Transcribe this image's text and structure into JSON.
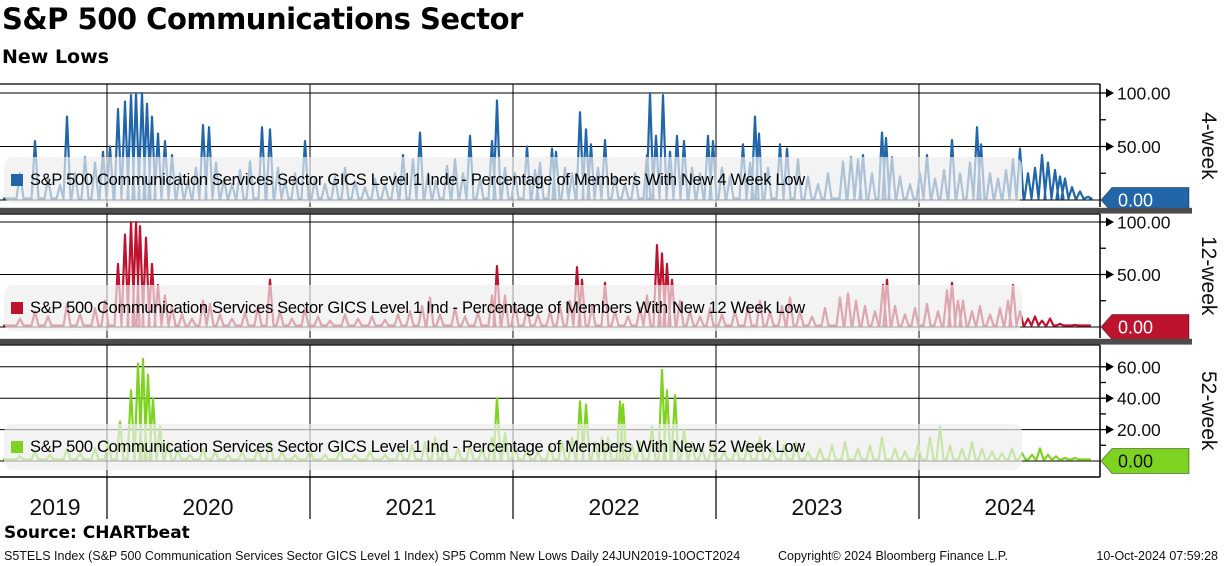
{
  "header": {
    "title": "S&P 500 Communications Sector",
    "subtitle": "New Lows"
  },
  "source_label": "Source: CHARTbeat",
  "footer": {
    "left": "S5TELS Index (S&P 500 Communication Services Sector GICS Level 1 Index) SP5 Comm New Lows  Daily 24JUN2019-10OCT2024",
    "copyright": "Copyright© 2024 Bloomberg Finance L.P.",
    "timestamp": "10-Oct-2024 07:59:28"
  },
  "x_axis": {
    "years": [
      "2019",
      "2020",
      "2021",
      "2022",
      "2023",
      "2024"
    ],
    "range": "24JUN2019-10OCT2024"
  },
  "chart_data": [
    {
      "type": "line",
      "panel": "4-week",
      "legend": "S&P 500 Communication Services Sector GICS Level 1 Inde - Percentage of Members With New 4 Week Low",
      "color": "#2066a8",
      "ylabel": "Percentage of Members With New 4 Week Low",
      "ylim": [
        0,
        112
      ],
      "yticks": [
        {
          "value": 100,
          "label": "100.00"
        },
        {
          "value": 50,
          "label": "50.00"
        }
      ],
      "minor_ticks": [
        25,
        75
      ],
      "zero_tag": {
        "value": 0,
        "label": "0.00",
        "text_color": "#ffffff"
      },
      "x_unit": "plot position 0-1100 spanning 24JUN2019 to 10OCT2024",
      "spikes": [
        [
          20,
          25
        ],
        [
          35,
          55
        ],
        [
          48,
          20
        ],
        [
          60,
          14
        ],
        [
          67,
          78
        ],
        [
          75,
          25
        ],
        [
          85,
          40
        ],
        [
          95,
          35
        ],
        [
          103,
          45
        ],
        [
          110,
          50
        ],
        [
          118,
          85
        ],
        [
          125,
          92
        ],
        [
          131,
          98
        ],
        [
          136,
          100
        ],
        [
          142,
          100
        ],
        [
          147,
          90
        ],
        [
          152,
          78
        ],
        [
          158,
          62
        ],
        [
          165,
          55
        ],
        [
          172,
          42
        ],
        [
          180,
          25
        ],
        [
          188,
          18
        ],
        [
          196,
          30
        ],
        [
          203,
          70
        ],
        [
          209,
          68
        ],
        [
          216,
          35
        ],
        [
          224,
          20
        ],
        [
          232,
          15
        ],
        [
          240,
          28
        ],
        [
          250,
          36
        ],
        [
          262,
          68
        ],
        [
          270,
          66
        ],
        [
          278,
          30
        ],
        [
          285,
          18
        ],
        [
          295,
          25
        ],
        [
          305,
          55
        ],
        [
          315,
          20
        ],
        [
          325,
          15
        ],
        [
          335,
          22
        ],
        [
          345,
          30
        ],
        [
          355,
          18
        ],
        [
          365,
          12
        ],
        [
          375,
          20
        ],
        [
          385,
          15
        ],
        [
          395,
          25
        ],
        [
          403,
          42
        ],
        [
          413,
          38
        ],
        [
          420,
          63
        ],
        [
          428,
          25
        ],
        [
          436,
          18
        ],
        [
          447,
          32
        ],
        [
          455,
          38
        ],
        [
          463,
          25
        ],
        [
          470,
          60
        ],
        [
          480,
          20
        ],
        [
          492,
          55
        ],
        [
          497,
          93
        ],
        [
          505,
          30
        ],
        [
          515,
          25
        ],
        [
          527,
          50
        ],
        [
          535,
          28
        ],
        [
          540,
          35
        ],
        [
          552,
          48
        ],
        [
          556,
          45
        ],
        [
          565,
          30
        ],
        [
          572,
          25
        ],
        [
          580,
          82
        ],
        [
          586,
          66
        ],
        [
          591,
          52
        ],
        [
          598,
          30
        ],
        [
          605,
          56
        ],
        [
          615,
          22
        ],
        [
          625,
          15
        ],
        [
          635,
          25
        ],
        [
          647,
          42
        ],
        [
          650,
          100
        ],
        [
          656,
          60
        ],
        [
          663,
          98
        ],
        [
          670,
          45
        ],
        [
          677,
          60
        ],
        [
          684,
          55
        ],
        [
          692,
          30
        ],
        [
          700,
          25
        ],
        [
          708,
          60
        ],
        [
          713,
          55
        ],
        [
          722,
          30
        ],
        [
          730,
          22
        ],
        [
          743,
          52
        ],
        [
          750,
          35
        ],
        [
          755,
          78
        ],
        [
          759,
          62
        ],
        [
          768,
          30
        ],
        [
          780,
          52
        ],
        [
          787,
          48
        ],
        [
          798,
          38
        ],
        [
          808,
          22
        ],
        [
          818,
          15
        ],
        [
          828,
          25
        ],
        [
          843,
          36
        ],
        [
          851,
          40
        ],
        [
          858,
          38
        ],
        [
          863,
          42
        ],
        [
          872,
          25
        ],
        [
          882,
          63
        ],
        [
          886,
          58
        ],
        [
          892,
          40
        ],
        [
          900,
          22
        ],
        [
          910,
          15
        ],
        [
          920,
          25
        ],
        [
          927,
          42
        ],
        [
          935,
          20
        ],
        [
          944,
          28
        ],
        [
          952,
          56
        ],
        [
          960,
          25
        ],
        [
          970,
          35
        ],
        [
          977,
          68
        ],
        [
          981,
          52
        ],
        [
          990,
          25
        ],
        [
          998,
          20
        ],
        [
          1006,
          28
        ],
        [
          1013,
          38
        ],
        [
          1020,
          48
        ],
        [
          1028,
          25
        ],
        [
          1035,
          30
        ],
        [
          1042,
          42
        ],
        [
          1048,
          35
        ],
        [
          1055,
          28
        ],
        [
          1060,
          22
        ],
        [
          1065,
          20
        ],
        [
          1072,
          12
        ],
        [
          1080,
          8
        ],
        [
          1088,
          3
        ]
      ]
    },
    {
      "type": "line",
      "panel": "12-week",
      "legend": "S&P 500 Communication Services Sector GICS Level 1 Ind - Percentage of Members With New 12 Week Low",
      "color": "#be132f",
      "ylabel": "Percentage of Members With New 12 Week Low",
      "ylim": [
        0,
        112
      ],
      "yticks": [
        {
          "value": 100,
          "label": "100.00"
        },
        {
          "value": 50,
          "label": "50.00"
        }
      ],
      "minor_ticks": [
        25,
        75
      ],
      "zero_tag": {
        "value": 0,
        "label": "0.00",
        "text_color": "#ffffff"
      },
      "x_unit": "plot position 0-1100 spanning 24JUN2019 to 10OCT2024",
      "spikes": [
        [
          20,
          8
        ],
        [
          35,
          15
        ],
        [
          48,
          10
        ],
        [
          67,
          22
        ],
        [
          80,
          12
        ],
        [
          95,
          18
        ],
        [
          105,
          25
        ],
        [
          118,
          60
        ],
        [
          125,
          88
        ],
        [
          131,
          100
        ],
        [
          136,
          100
        ],
        [
          140,
          96
        ],
        [
          146,
          85
        ],
        [
          152,
          60
        ],
        [
          158,
          40
        ],
        [
          165,
          30
        ],
        [
          172,
          20
        ],
        [
          182,
          12
        ],
        [
          192,
          8
        ],
        [
          203,
          25
        ],
        [
          210,
          22
        ],
        [
          220,
          12
        ],
        [
          232,
          8
        ],
        [
          245,
          14
        ],
        [
          258,
          20
        ],
        [
          270,
          45
        ],
        [
          280,
          15
        ],
        [
          292,
          8
        ],
        [
          305,
          18
        ],
        [
          318,
          10
        ],
        [
          330,
          6
        ],
        [
          345,
          12
        ],
        [
          358,
          8
        ],
        [
          372,
          10
        ],
        [
          385,
          7
        ],
        [
          398,
          12
        ],
        [
          410,
          15
        ],
        [
          422,
          20
        ],
        [
          430,
          28
        ],
        [
          440,
          12
        ],
        [
          455,
          18
        ],
        [
          465,
          10
        ],
        [
          478,
          14
        ],
        [
          492,
          30
        ],
        [
          497,
          58
        ],
        [
          505,
          30
        ],
        [
          515,
          22
        ],
        [
          527,
          18
        ],
        [
          538,
          12
        ],
        [
          550,
          15
        ],
        [
          560,
          20
        ],
        [
          570,
          25
        ],
        [
          577,
          57
        ],
        [
          582,
          45
        ],
        [
          592,
          20
        ],
        [
          605,
          42
        ],
        [
          615,
          15
        ],
        [
          628,
          10
        ],
        [
          640,
          18
        ],
        [
          647,
          30
        ],
        [
          657,
          78
        ],
        [
          662,
          70
        ],
        [
          667,
          60
        ],
        [
          672,
          45
        ],
        [
          680,
          25
        ],
        [
          690,
          15
        ],
        [
          700,
          10
        ],
        [
          710,
          18
        ],
        [
          722,
          12
        ],
        [
          735,
          15
        ],
        [
          748,
          20
        ],
        [
          760,
          25
        ],
        [
          770,
          15
        ],
        [
          782,
          20
        ],
        [
          790,
          28
        ],
        [
          800,
          15
        ],
        [
          812,
          10
        ],
        [
          825,
          18
        ],
        [
          840,
          28
        ],
        [
          848,
          32
        ],
        [
          856,
          25
        ],
        [
          865,
          20
        ],
        [
          875,
          15
        ],
        [
          883,
          40
        ],
        [
          887,
          45
        ],
        [
          895,
          20
        ],
        [
          905,
          12
        ],
        [
          915,
          18
        ],
        [
          927,
          22
        ],
        [
          938,
          15
        ],
        [
          947,
          35
        ],
        [
          952,
          42
        ],
        [
          958,
          25
        ],
        [
          963,
          25
        ],
        [
          972,
          15
        ],
        [
          980,
          20
        ],
        [
          990,
          12
        ],
        [
          1000,
          18
        ],
        [
          1008,
          25
        ],
        [
          1013,
          40
        ],
        [
          1020,
          15
        ],
        [
          1028,
          8
        ],
        [
          1035,
          10
        ],
        [
          1042,
          6
        ],
        [
          1050,
          8
        ],
        [
          1060,
          3
        ],
        [
          1075,
          2
        ]
      ]
    },
    {
      "type": "line",
      "panel": "52-week",
      "legend": "S&P 500 Communication Services Sector GICS Level 1 Ind - Percentage of Members With New 52 Week Low",
      "color": "#7ed321",
      "ylabel": "Percentage of Members With New 52 Week Low",
      "ylim": [
        0,
        74
      ],
      "yticks": [
        {
          "value": 60,
          "label": "60.00"
        },
        {
          "value": 40,
          "label": "40.00"
        },
        {
          "value": 20,
          "label": "20.00"
        }
      ],
      "minor_ticks": [
        10,
        30,
        50
      ],
      "zero_tag": {
        "value": 0,
        "label": "0.00",
        "text_color": "#111111"
      },
      "x_unit": "plot position 0-1100 spanning 24JUN2019 to 10OCT2024",
      "spikes": [
        [
          20,
          3
        ],
        [
          35,
          6
        ],
        [
          50,
          4
        ],
        [
          67,
          8
        ],
        [
          80,
          5
        ],
        [
          95,
          8
        ],
        [
          108,
          12
        ],
        [
          120,
          25
        ],
        [
          131,
          45
        ],
        [
          138,
          62
        ],
        [
          143,
          65
        ],
        [
          148,
          55
        ],
        [
          153,
          40
        ],
        [
          160,
          22
        ],
        [
          168,
          12
        ],
        [
          178,
          7
        ],
        [
          190,
          4
        ],
        [
          203,
          8
        ],
        [
          215,
          6
        ],
        [
          228,
          4
        ],
        [
          242,
          6
        ],
        [
          258,
          8
        ],
        [
          270,
          12
        ],
        [
          282,
          6
        ],
        [
          295,
          4
        ],
        [
          310,
          7
        ],
        [
          325,
          4
        ],
        [
          340,
          6
        ],
        [
          355,
          4
        ],
        [
          370,
          6
        ],
        [
          385,
          4
        ],
        [
          400,
          8
        ],
        [
          412,
          10
        ],
        [
          425,
          12
        ],
        [
          435,
          15
        ],
        [
          445,
          12
        ],
        [
          458,
          8
        ],
        [
          470,
          10
        ],
        [
          482,
          8
        ],
        [
          492,
          15
        ],
        [
          497,
          40
        ],
        [
          505,
          18
        ],
        [
          515,
          10
        ],
        [
          527,
          8
        ],
        [
          538,
          6
        ],
        [
          550,
          10
        ],
        [
          562,
          12
        ],
        [
          572,
          15
        ],
        [
          580,
          38
        ],
        [
          586,
          36
        ],
        [
          595,
          12
        ],
        [
          602,
          15
        ],
        [
          608,
          15
        ],
        [
          620,
          38
        ],
        [
          623,
          36
        ],
        [
          632,
          10
        ],
        [
          640,
          12
        ],
        [
          652,
          22
        ],
        [
          662,
          58
        ],
        [
          667,
          45
        ],
        [
          675,
          42
        ],
        [
          684,
          20
        ],
        [
          692,
          12
        ],
        [
          702,
          8
        ],
        [
          712,
          10
        ],
        [
          724,
          6
        ],
        [
          736,
          8
        ],
        [
          748,
          12
        ],
        [
          760,
          15
        ],
        [
          772,
          8
        ],
        [
          784,
          10
        ],
        [
          796,
          12
        ],
        [
          808,
          6
        ],
        [
          820,
          8
        ],
        [
          832,
          10
        ],
        [
          845,
          12
        ],
        [
          858,
          8
        ],
        [
          870,
          10
        ],
        [
          882,
          15
        ],
        [
          895,
          8
        ],
        [
          905,
          6
        ],
        [
          918,
          10
        ],
        [
          930,
          15
        ],
        [
          940,
          22
        ],
        [
          950,
          10
        ],
        [
          962,
          8
        ],
        [
          972,
          12
        ],
        [
          982,
          8
        ],
        [
          992,
          6
        ],
        [
          1002,
          5
        ],
        [
          1012,
          8
        ],
        [
          1022,
          5
        ],
        [
          1032,
          4
        ],
        [
          1040,
          8
        ],
        [
          1048,
          4
        ],
        [
          1056,
          3
        ],
        [
          1065,
          2
        ],
        [
          1075,
          2
        ]
      ]
    }
  ]
}
